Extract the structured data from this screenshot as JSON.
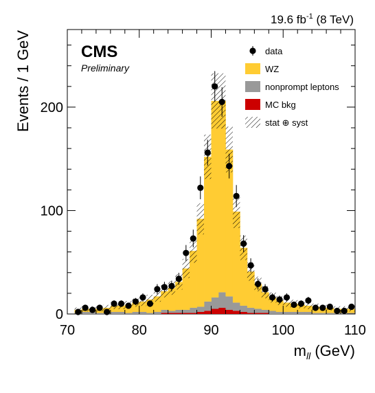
{
  "chart_data": {
    "type": "bar",
    "lumi": {
      "prefix": "19.6 fb",
      "exponent": "-1",
      "suffix": " (8 TeV)"
    },
    "experiment": "CMS",
    "status": "Preliminary",
    "ylabel": "Events / 1 GeV",
    "xlabel": {
      "main": "m",
      "sub": "ll",
      "unit": " (GeV)"
    },
    "xlim": [
      70,
      110
    ],
    "ylim": [
      0,
      275
    ],
    "xticks": [
      "70",
      "80",
      "90",
      "100",
      "110"
    ],
    "yticks": [
      "0",
      "100",
      "200"
    ],
    "legend": {
      "placement": "top-right",
      "entries": [
        {
          "label": "data",
          "style": "marker"
        },
        {
          "label": "WZ",
          "style": "fill",
          "color": "#ffcc33"
        },
        {
          "label": "nonprompt leptons",
          "style": "fill",
          "color": "#999999"
        },
        {
          "label": "MC bkg",
          "style": "fill",
          "color": "#cc0000"
        },
        {
          "label": "stat ⊕ syst",
          "style": "hatch"
        }
      ]
    },
    "bin_edges": [
      71,
      72,
      73,
      74,
      75,
      76,
      77,
      78,
      79,
      80,
      81,
      82,
      83,
      84,
      85,
      86,
      87,
      88,
      89,
      90,
      91,
      92,
      93,
      94,
      95,
      96,
      97,
      98,
      99,
      100,
      101,
      102,
      103,
      104,
      105,
      106,
      107,
      108,
      109,
      110
    ],
    "series": [
      {
        "name": "MC bkg",
        "color": "#cc0000",
        "values": [
          0,
          0,
          0,
          0,
          0,
          0,
          0,
          0,
          0,
          0,
          0,
          0,
          1,
          1,
          1,
          1,
          1,
          2,
          3,
          5,
          6,
          4,
          3,
          2,
          1,
          1,
          1,
          0,
          0,
          0,
          0,
          0,
          0,
          0,
          0,
          0,
          0,
          0,
          0
        ]
      },
      {
        "name": "nonprompt leptons",
        "color": "#999999",
        "values": [
          1,
          2,
          2,
          1,
          1,
          2,
          2,
          1,
          2,
          2,
          1,
          2,
          3,
          2,
          3,
          3,
          5,
          5,
          9,
          11,
          15,
          13,
          8,
          6,
          5,
          4,
          3,
          3,
          2,
          2,
          2,
          2,
          2,
          1,
          1,
          1,
          1,
          1,
          1
        ]
      },
      {
        "name": "WZ",
        "color": "#ffcc33",
        "values": [
          3,
          3,
          3,
          4,
          5,
          6,
          6,
          8,
          9,
          10,
          13,
          15,
          18,
          22,
          27,
          40,
          55,
          85,
          140,
          190,
          185,
          142,
          88,
          56,
          35,
          24,
          17,
          13,
          11,
          9,
          8,
          7,
          6,
          6,
          5,
          5,
          4,
          4,
          4
        ]
      }
    ],
    "data_points": {
      "x": [
        71.5,
        72.5,
        73.5,
        74.5,
        75.5,
        76.5,
        77.5,
        78.5,
        79.5,
        80.5,
        81.5,
        82.5,
        83.5,
        84.5,
        85.5,
        86.5,
        87.5,
        88.5,
        89.5,
        90.5,
        91.5,
        92.5,
        93.5,
        94.5,
        95.5,
        96.5,
        97.5,
        98.5,
        99.5,
        100.5,
        101.5,
        102.5,
        103.5,
        104.5,
        105.5,
        106.5,
        107.5,
        108.5,
        109.5
      ],
      "y": [
        2,
        6,
        4,
        6,
        2,
        10,
        10,
        8,
        12,
        16,
        10,
        24,
        26,
        27,
        34,
        59,
        73,
        122,
        156,
        220,
        205,
        143,
        114,
        68,
        47,
        29,
        24,
        16,
        14,
        16,
        9,
        10,
        13,
        6,
        6,
        7,
        3,
        3,
        7
      ]
    }
  }
}
